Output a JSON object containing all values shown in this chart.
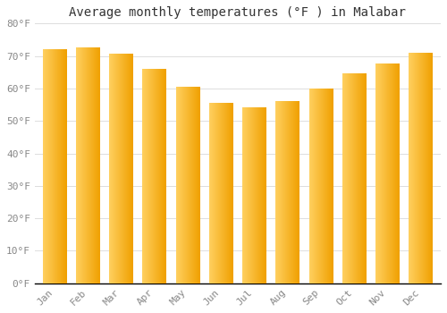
{
  "title": "Average monthly temperatures (°F ) in Malabar",
  "months": [
    "Jan",
    "Feb",
    "Mar",
    "Apr",
    "May",
    "Jun",
    "Jul",
    "Aug",
    "Sep",
    "Oct",
    "Nov",
    "Dec"
  ],
  "values": [
    72,
    72.5,
    70.5,
    66,
    60.5,
    55.5,
    54,
    56,
    60,
    64.5,
    67.5,
    71
  ],
  "bar_color_dark": "#F0A000",
  "bar_color_light": "#FFD060",
  "ylim": [
    0,
    80
  ],
  "yticks": [
    0,
    10,
    20,
    30,
    40,
    50,
    60,
    70,
    80
  ],
  "ytick_labels": [
    "0°F",
    "10°F",
    "20°F",
    "30°F",
    "40°F",
    "50°F",
    "60°F",
    "70°F",
    "80°F"
  ],
  "background_color": "#FFFFFF",
  "grid_color": "#DDDDDD",
  "title_fontsize": 10,
  "tick_fontsize": 8,
  "tick_color": "#888888"
}
